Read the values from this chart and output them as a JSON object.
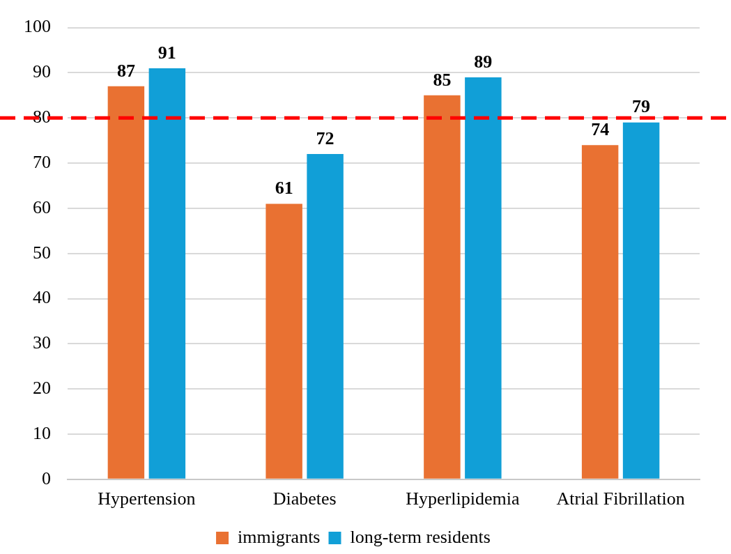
{
  "chart_data": {
    "type": "bar",
    "categories": [
      "Hypertension",
      "Diabetes",
      "Hyperlipidemia",
      "Atrial Fibrillation"
    ],
    "series": [
      {
        "name": "immigrants",
        "color": "#e97132",
        "values": [
          87,
          61,
          85,
          74
        ]
      },
      {
        "name": "long-term residents",
        "color": "#119fd7",
        "values": [
          91,
          72,
          89,
          79
        ]
      }
    ],
    "ylim": [
      0,
      100
    ],
    "yticks": [
      0,
      10,
      20,
      30,
      40,
      50,
      60,
      70,
      80,
      90,
      100
    ],
    "grid": "y",
    "legend": "bottom",
    "data_labels": true,
    "ref_lines": [
      {
        "axis": "y",
        "value": 80,
        "color": "#ff0000",
        "line_style": "dashed"
      }
    ]
  }
}
